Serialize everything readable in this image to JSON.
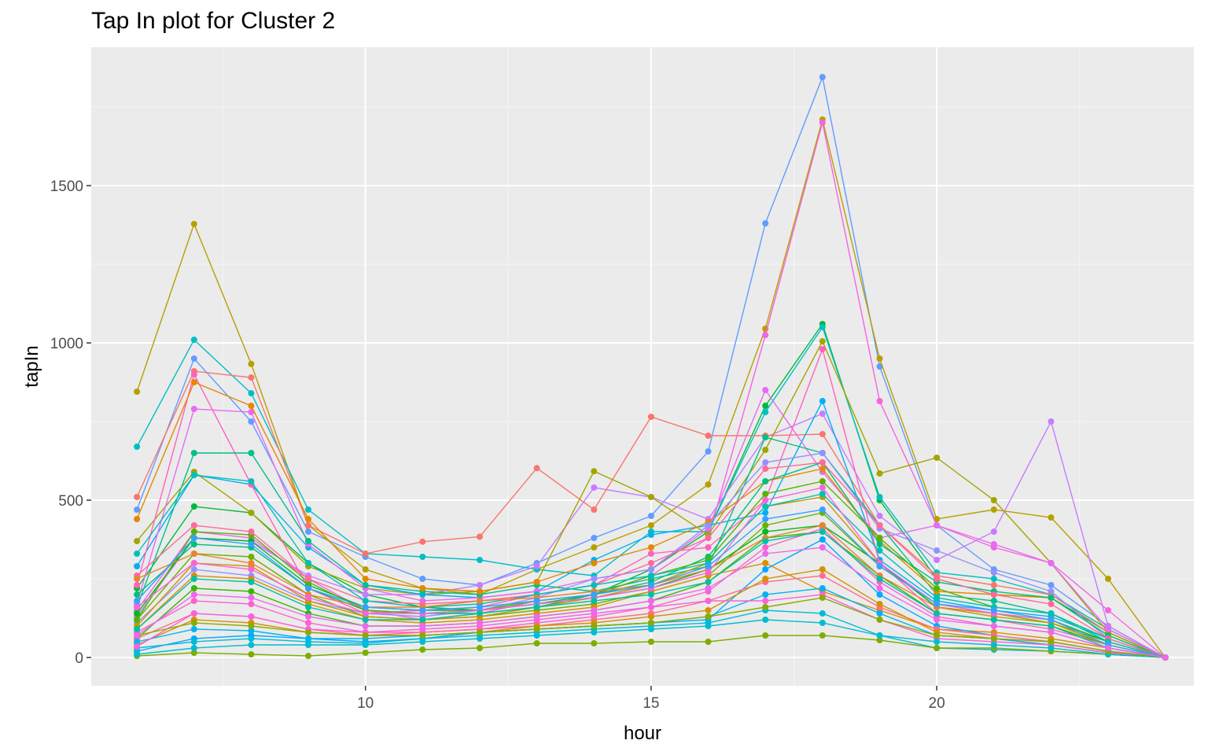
{
  "chart_data": {
    "type": "line",
    "title": "Tap In plot for Cluster 2",
    "xlabel": "hour",
    "ylabel": "tapIn",
    "xlim": [
      5.2,
      24.5
    ],
    "ylim": [
      -90,
      1940
    ],
    "x_ticks": [
      10,
      15,
      20
    ],
    "y_ticks": [
      0,
      500,
      1000,
      1500
    ],
    "x_minor_ticks": [
      7.5,
      12.5,
      17.5,
      22.5
    ],
    "y_minor_ticks": [
      250,
      750,
      1250,
      1750
    ],
    "grid": true,
    "legend": "none",
    "colors": {
      "panel_background": "#EBEBEB",
      "grid_major": "#FFFFFF",
      "grid_minor": "#F5F5F5"
    },
    "x": [
      6,
      7,
      8,
      9,
      10,
      11,
      12,
      13,
      14,
      15,
      16,
      17,
      18,
      19,
      20,
      21,
      22,
      23,
      24
    ],
    "series": [
      {
        "color": "#619CFF",
        "values": [
          470,
          950,
          750,
          400,
          320,
          250,
          230,
          300,
          380,
          450,
          655,
          1380,
          1845,
          925,
          420,
          280,
          230,
          100,
          0
        ]
      },
      {
        "color": "#B79F00",
        "values": [
          845,
          1378,
          933,
          420,
          280,
          220,
          200,
          280,
          350,
          420,
          550,
          1045,
          1710,
          950,
          440,
          470,
          445,
          250,
          0
        ]
      },
      {
        "color": "#F564E3",
        "values": [
          150,
          400,
          380,
          250,
          150,
          120,
          140,
          180,
          200,
          260,
          380,
          1025,
          1700,
          815,
          420,
          350,
          300,
          150,
          0
        ]
      },
      {
        "color": "#00BA38",
        "values": [
          220,
          480,
          460,
          300,
          200,
          160,
          150,
          170,
          200,
          280,
          400,
          800,
          1060,
          500,
          250,
          200,
          190,
          80,
          0
        ]
      },
      {
        "color": "#00BFC4",
        "values": [
          670,
          1010,
          840,
          470,
          330,
          320,
          310,
          280,
          260,
          400,
          400,
          780,
          1050,
          510,
          270,
          250,
          200,
          90,
          0
        ]
      },
      {
        "color": "#C77CFF",
        "values": [
          130,
          380,
          370,
          260,
          200,
          200,
          230,
          290,
          540,
          510,
          440,
          700,
          775,
          450,
          310,
          400,
          750,
          100,
          0
        ]
      },
      {
        "color": "#F8766D",
        "values": [
          510,
          910,
          890,
          420,
          330,
          368,
          384,
          602,
          470,
          765,
          705,
          705,
          710,
          420,
          260,
          230,
          200,
          80,
          0
        ]
      },
      {
        "color": "#A3A500",
        "values": [
          370,
          590,
          460,
          290,
          220,
          200,
          210,
          240,
          592,
          510,
          390,
          660,
          1005,
          585,
          635,
          500,
          300,
          80,
          0
        ]
      },
      {
        "color": "#00B0F6",
        "values": [
          290,
          580,
          550,
          350,
          230,
          200,
          190,
          210,
          310,
          390,
          420,
          460,
          815,
          310,
          180,
          150,
          130,
          60,
          0
        ]
      },
      {
        "color": "#E76BF3",
        "values": [
          170,
          790,
          780,
          360,
          220,
          180,
          190,
          210,
          250,
          280,
          410,
          850,
          590,
          380,
          420,
          360,
          300,
          90,
          0
        ]
      },
      {
        "color": "#FF62BC",
        "values": [
          230,
          900,
          550,
          220,
          140,
          150,
          160,
          200,
          230,
          330,
          350,
          500,
          980,
          300,
          140,
          120,
          90,
          40,
          0
        ]
      },
      {
        "color": "#00C08B",
        "values": [
          160,
          650,
          650,
          370,
          230,
          210,
          200,
          230,
          210,
          250,
          290,
          700,
          650,
          420,
          200,
          180,
          140,
          60,
          0
        ]
      },
      {
        "color": "#E58700",
        "values": [
          440,
          875,
          800,
          440,
          250,
          220,
          210,
          240,
          300,
          350,
          430,
          560,
          600,
          370,
          210,
          200,
          190,
          70,
          0
        ]
      },
      {
        "color": "#9590FF",
        "values": [
          110,
          280,
          260,
          180,
          140,
          130,
          150,
          190,
          250,
          280,
          420,
          620,
          650,
          410,
          340,
          270,
          210,
          60,
          0
        ]
      },
      {
        "color": "#00BF7D",
        "values": [
          200,
          360,
          350,
          220,
          150,
          140,
          140,
          160,
          200,
          240,
          320,
          560,
          620,
          360,
          240,
          210,
          190,
          70,
          0
        ]
      },
      {
        "color": "#6BB100",
        "values": [
          120,
          330,
          320,
          200,
          130,
          120,
          130,
          150,
          170,
          210,
          260,
          420,
          460,
          290,
          170,
          140,
          110,
          50,
          0
        ]
      },
      {
        "color": "#39B600",
        "values": [
          60,
          220,
          210,
          140,
          100,
          100,
          110,
          130,
          150,
          180,
          240,
          380,
          400,
          260,
          140,
          120,
          100,
          40,
          0
        ]
      },
      {
        "color": "#DB8E00",
        "values": [
          90,
          260,
          250,
          170,
          120,
          110,
          120,
          140,
          160,
          210,
          260,
          300,
          210,
          150,
          90,
          80,
          60,
          30,
          0
        ]
      },
      {
        "color": "#FD61D1",
        "values": [
          80,
          180,
          170,
          110,
          80,
          80,
          90,
          110,
          130,
          160,
          210,
          350,
          410,
          240,
          130,
          100,
          80,
          30,
          0
        ]
      },
      {
        "color": "#00A9FF",
        "values": [
          20,
          60,
          70,
          60,
          50,
          60,
          80,
          90,
          100,
          110,
          120,
          280,
          375,
          200,
          100,
          70,
          50,
          20,
          0
        ]
      },
      {
        "color": "#00BCD8",
        "values": [
          30,
          50,
          60,
          50,
          45,
          60,
          70,
          80,
          90,
          100,
          110,
          150,
          140,
          70,
          30,
          25,
          20,
          10,
          0
        ]
      },
      {
        "color": "#7CAE00",
        "values": [
          5,
          15,
          10,
          5,
          15,
          25,
          30,
          45,
          45,
          50,
          50,
          70,
          70,
          55,
          30,
          30,
          20,
          10,
          0
        ]
      },
      {
        "color": "#FF6C91",
        "values": [
          60,
          140,
          130,
          90,
          70,
          80,
          90,
          100,
          120,
          140,
          180,
          240,
          260,
          160,
          90,
          70,
          50,
          20,
          0
        ]
      },
      {
        "color": "#D39200",
        "values": [
          40,
          120,
          110,
          80,
          70,
          70,
          80,
          100,
          110,
          130,
          150,
          250,
          280,
          170,
          80,
          60,
          40,
          15,
          0
        ]
      },
      {
        "color": "#00B4F0",
        "values": [
          50,
          90,
          85,
          60,
          60,
          70,
          80,
          90,
          100,
          110,
          130,
          200,
          220,
          140,
          70,
          60,
          40,
          15,
          0
        ]
      },
      {
        "color": "#F962DD",
        "values": [
          35,
          140,
          130,
          90,
          80,
          90,
          100,
          120,
          140,
          160,
          180,
          180,
          200,
          120,
          60,
          50,
          40,
          15,
          0
        ]
      },
      {
        "color": "#00BDD0",
        "values": [
          10,
          30,
          40,
          40,
          40,
          50,
          60,
          70,
          80,
          90,
          100,
          120,
          110,
          70,
          50,
          40,
          30,
          10,
          0
        ]
      },
      {
        "color": "#C49A00",
        "values": [
          100,
          300,
          290,
          180,
          130,
          120,
          130,
          160,
          190,
          230,
          300,
          480,
          510,
          300,
          160,
          130,
          110,
          40,
          0
        ]
      },
      {
        "color": "#00B81F",
        "values": [
          140,
          380,
          370,
          230,
          160,
          150,
          150,
          170,
          190,
          220,
          280,
          400,
          420,
          300,
          160,
          140,
          120,
          50,
          0
        ]
      },
      {
        "color": "#53B400",
        "values": [
          120,
          400,
          390,
          240,
          150,
          140,
          150,
          180,
          200,
          260,
          310,
          520,
          560,
          380,
          220,
          160,
          140,
          50,
          0
        ]
      },
      {
        "color": "#FF699C",
        "values": [
          260,
          420,
          400,
          250,
          180,
          170,
          180,
          200,
          230,
          300,
          380,
          600,
          620,
          420,
          250,
          200,
          170,
          60,
          0
        ]
      },
      {
        "color": "#00C0B8",
        "values": [
          330,
          580,
          560,
          300,
          180,
          160,
          170,
          200,
          230,
          260,
          300,
          480,
          520,
          340,
          190,
          160,
          140,
          50,
          0
        ]
      },
      {
        "color": "#8AAB00",
        "values": [
          70,
          110,
          100,
          80,
          70,
          70,
          80,
          90,
          100,
          110,
          130,
          160,
          190,
          120,
          70,
          60,
          50,
          20,
          0
        ]
      },
      {
        "color": "#EA8331",
        "values": [
          250,
          330,
          300,
          200,
          160,
          160,
          180,
          190,
          210,
          230,
          280,
          380,
          420,
          260,
          160,
          140,
          120,
          40,
          0
        ]
      },
      {
        "color": "#FA62DB",
        "values": [
          160,
          300,
          280,
          190,
          140,
          140,
          150,
          170,
          190,
          220,
          270,
          500,
          540,
          300,
          170,
          140,
          120,
          40,
          0
        ]
      },
      {
        "color": "#02C1A3",
        "values": [
          90,
          250,
          240,
          160,
          120,
          120,
          140,
          160,
          180,
          200,
          240,
          370,
          400,
          250,
          140,
          120,
          100,
          30,
          0
        ]
      },
      {
        "color": "#35A2FF",
        "values": [
          180,
          380,
          360,
          220,
          160,
          150,
          160,
          180,
          200,
          230,
          290,
          440,
          470,
          290,
          170,
          150,
          120,
          40,
          0
        ]
      },
      {
        "color": "#ED68ED",
        "values": [
          70,
          200,
          190,
          130,
          100,
          100,
          110,
          130,
          150,
          180,
          220,
          330,
          350,
          220,
          120,
          100,
          80,
          30,
          0
        ]
      }
    ]
  }
}
